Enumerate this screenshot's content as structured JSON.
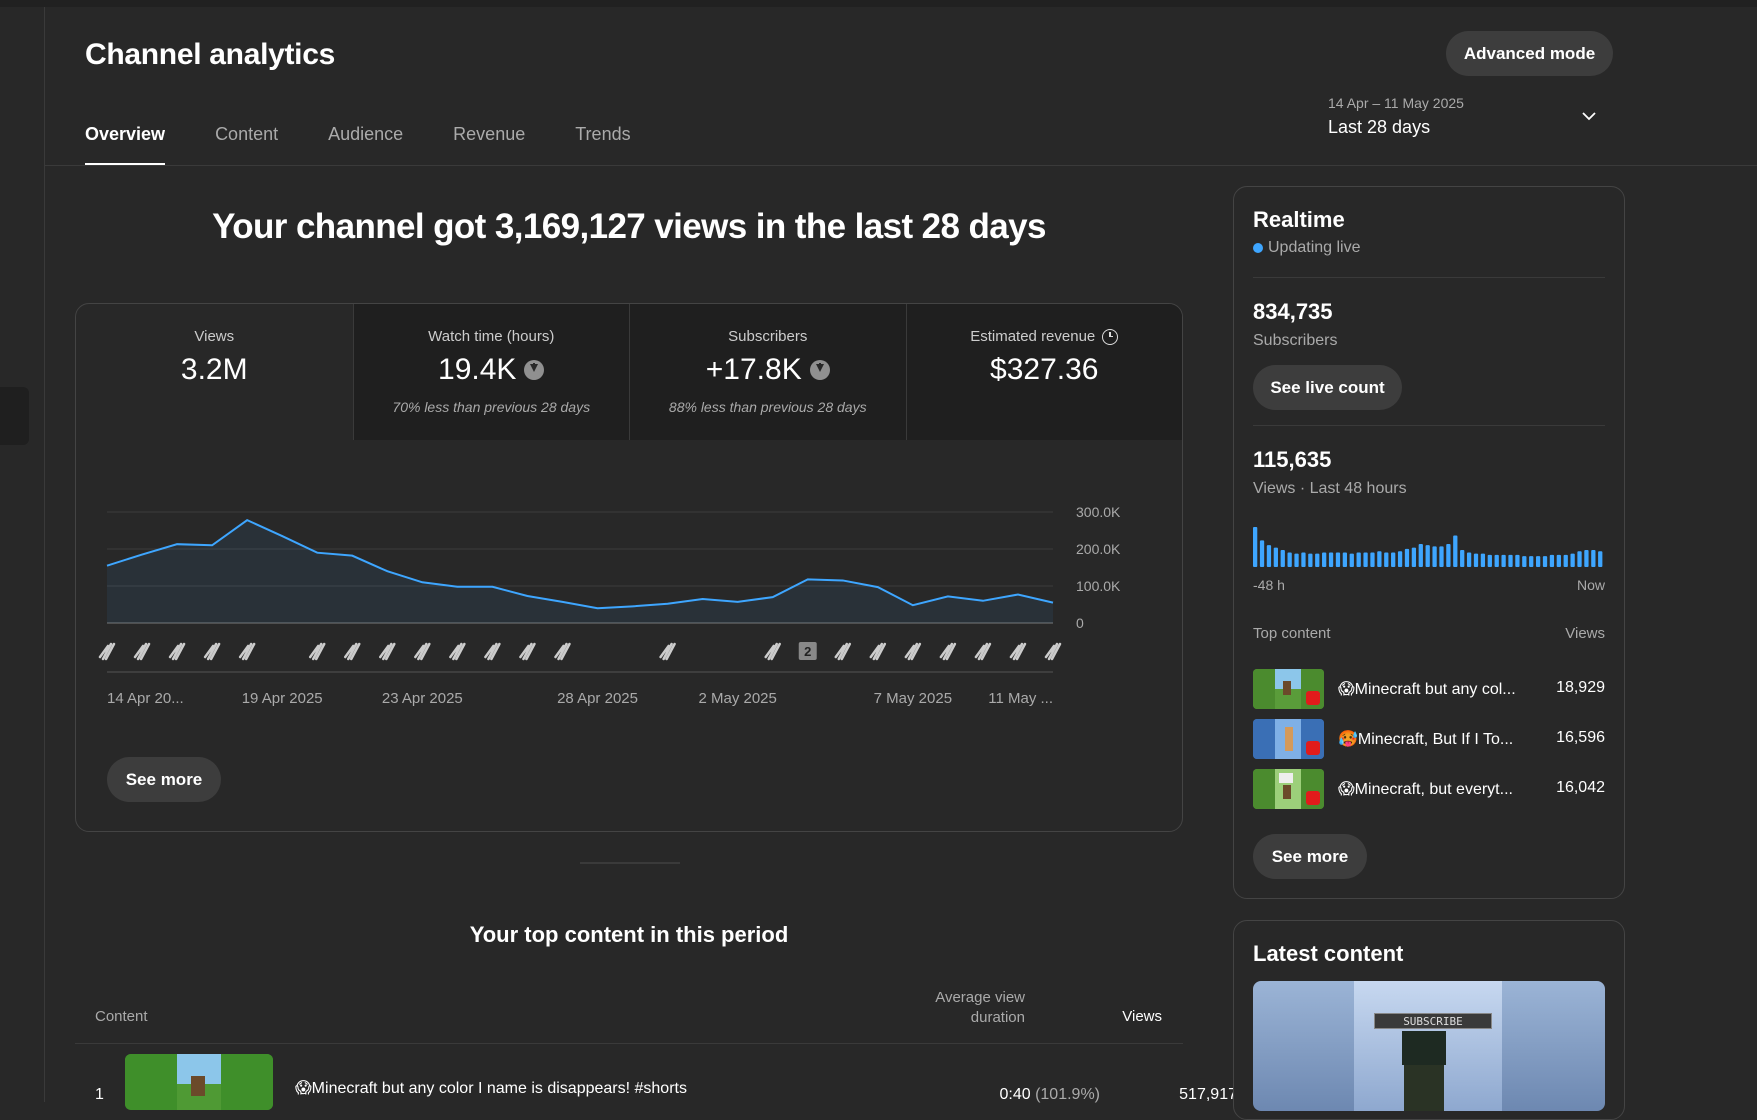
{
  "header": {
    "title": "Channel analytics",
    "advanced_mode": "Advanced mode",
    "tabs": [
      "Overview",
      "Content",
      "Audience",
      "Revenue",
      "Trends"
    ],
    "date_range": "14 Apr – 11 May 2025",
    "date_label": "Last 28 days"
  },
  "headline": "Your channel got 3,169,127 views in the last 28 days",
  "metrics": [
    {
      "label": "Views",
      "value": "3.2M",
      "note": ""
    },
    {
      "label": "Watch time (hours)",
      "value": "19.4K",
      "note": "70% less than previous 28 days"
    },
    {
      "label": "Subscribers",
      "value": "+17.8K",
      "note": "88% less than previous 28 days"
    },
    {
      "label": "Estimated revenue",
      "value": "$327.36",
      "note": ""
    }
  ],
  "chart_data": {
    "type": "area",
    "x_ticks": [
      "14 Apr 20...",
      "19 Apr 2025",
      "23 Apr 2025",
      "28 Apr 2025",
      "2 May 2025",
      "7 May 2025",
      "11 May ..."
    ],
    "x": [
      "14 Apr",
      "15 Apr",
      "16 Apr",
      "17 Apr",
      "18 Apr",
      "19 Apr",
      "20 Apr",
      "21 Apr",
      "22 Apr",
      "23 Apr",
      "24 Apr",
      "25 Apr",
      "26 Apr",
      "27 Apr",
      "28 Apr",
      "29 Apr",
      "30 Apr",
      "1 May",
      "2 May",
      "3 May",
      "4 May",
      "5 May",
      "6 May",
      "7 May",
      "8 May",
      "9 May",
      "10 May",
      "11 May"
    ],
    "series": [
      {
        "values": [
          155000,
          185000,
          213000,
          210000,
          278000,
          235000,
          190000,
          182000,
          140000,
          110000,
          98000,
          98000,
          73000,
          57000,
          40000,
          45000,
          52000,
          65000,
          57000,
          70000,
          118000,
          115000,
          97000,
          48000,
          72000,
          60000,
          77000,
          55000
        ]
      }
    ],
    "y_ticks": [
      "300.0K",
      "200.0K",
      "100.0K",
      "0"
    ],
    "ylim": [
      0,
      300000
    ],
    "color": "#3ea6ff",
    "grid": true,
    "upload_markers": [
      0,
      1,
      2,
      3,
      4,
      6,
      7,
      8,
      9,
      10,
      11,
      12,
      13,
      16,
      19,
      20,
      21,
      22,
      23,
      24,
      25,
      26,
      27
    ],
    "marker_badge": {
      "index": 20,
      "label": "2"
    }
  },
  "overview_see_more": "See more",
  "top_content": {
    "title": "Your top content in this period",
    "col_content": "Content",
    "col_avd": "Average view duration",
    "col_views": "Views",
    "rows": [
      {
        "rank": "1",
        "title": "😱Minecraft but any color I name is disappears! #shorts",
        "avd": "0:40",
        "avd_pct": "(101.9%)",
        "views": "517,917"
      }
    ]
  },
  "realtime": {
    "title": "Realtime",
    "status": "Updating live",
    "subscribers": "834,735",
    "subscribers_label": "Subscribers",
    "see_live_count": "See live count",
    "views": "115,635",
    "views_label": "Views · Last 48 hours",
    "bars": [
      33,
      22,
      18,
      16,
      14,
      12,
      11,
      12,
      11,
      11,
      12,
      12,
      12,
      12,
      11,
      12,
      12,
      12,
      13,
      12,
      12,
      13,
      15,
      16,
      19,
      18,
      17,
      17,
      19,
      26,
      14,
      12,
      11,
      11,
      10,
      10,
      10,
      10,
      10,
      9,
      9,
      9,
      9,
      10,
      10,
      10,
      11,
      13,
      14,
      14,
      13
    ],
    "axis_left": "-48 h",
    "axis_right": "Now",
    "top_content_label": "Top content",
    "views_col": "Views",
    "top_items": [
      {
        "title": "😱Minecraft but any col...",
        "views": "18,929"
      },
      {
        "title": "🥵Minecraft, But If I To...",
        "views": "16,596"
      },
      {
        "title": "😱Minecraft, but everyt...",
        "views": "16,042"
      }
    ],
    "see_more": "See more"
  },
  "latest_content": {
    "title": "Latest content",
    "subscribe_text": "SUBSCRIBE"
  }
}
